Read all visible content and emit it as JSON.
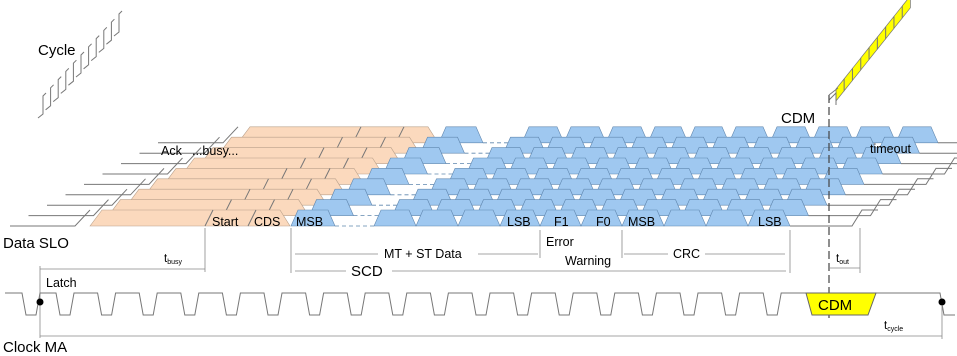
{
  "labels": {
    "cycle": "Cycle",
    "cdm_top": "CDM",
    "ack": "Ack",
    "busy": "...busy...",
    "timeout": "timeout",
    "data_slo": "Data SLO",
    "clock_ma": "Clock MA",
    "latch": "Latch",
    "t_busy_main": "t",
    "t_busy_sub": "busy",
    "t_out_main": "t",
    "t_out_sub": "out",
    "t_cycle_main": "t",
    "t_cycle_sub": "cycle",
    "mt_st_data": "MT + ST Data",
    "error": "Error",
    "warning": "Warning",
    "crc": "CRC",
    "scd": "SCD",
    "cdm_clock": "CDM"
  },
  "front_row": {
    "start": "Start",
    "cds": "CDS",
    "msb1": "MSB",
    "lsb1": "LSB",
    "f1": "F1",
    "f0": "F0",
    "msb2": "MSB",
    "lsb2": "LSB"
  },
  "colors": {
    "orange": "#fbd9bd",
    "blue": "#9fc8f0",
    "yellow": "#ffff00",
    "line": "#777777"
  }
}
